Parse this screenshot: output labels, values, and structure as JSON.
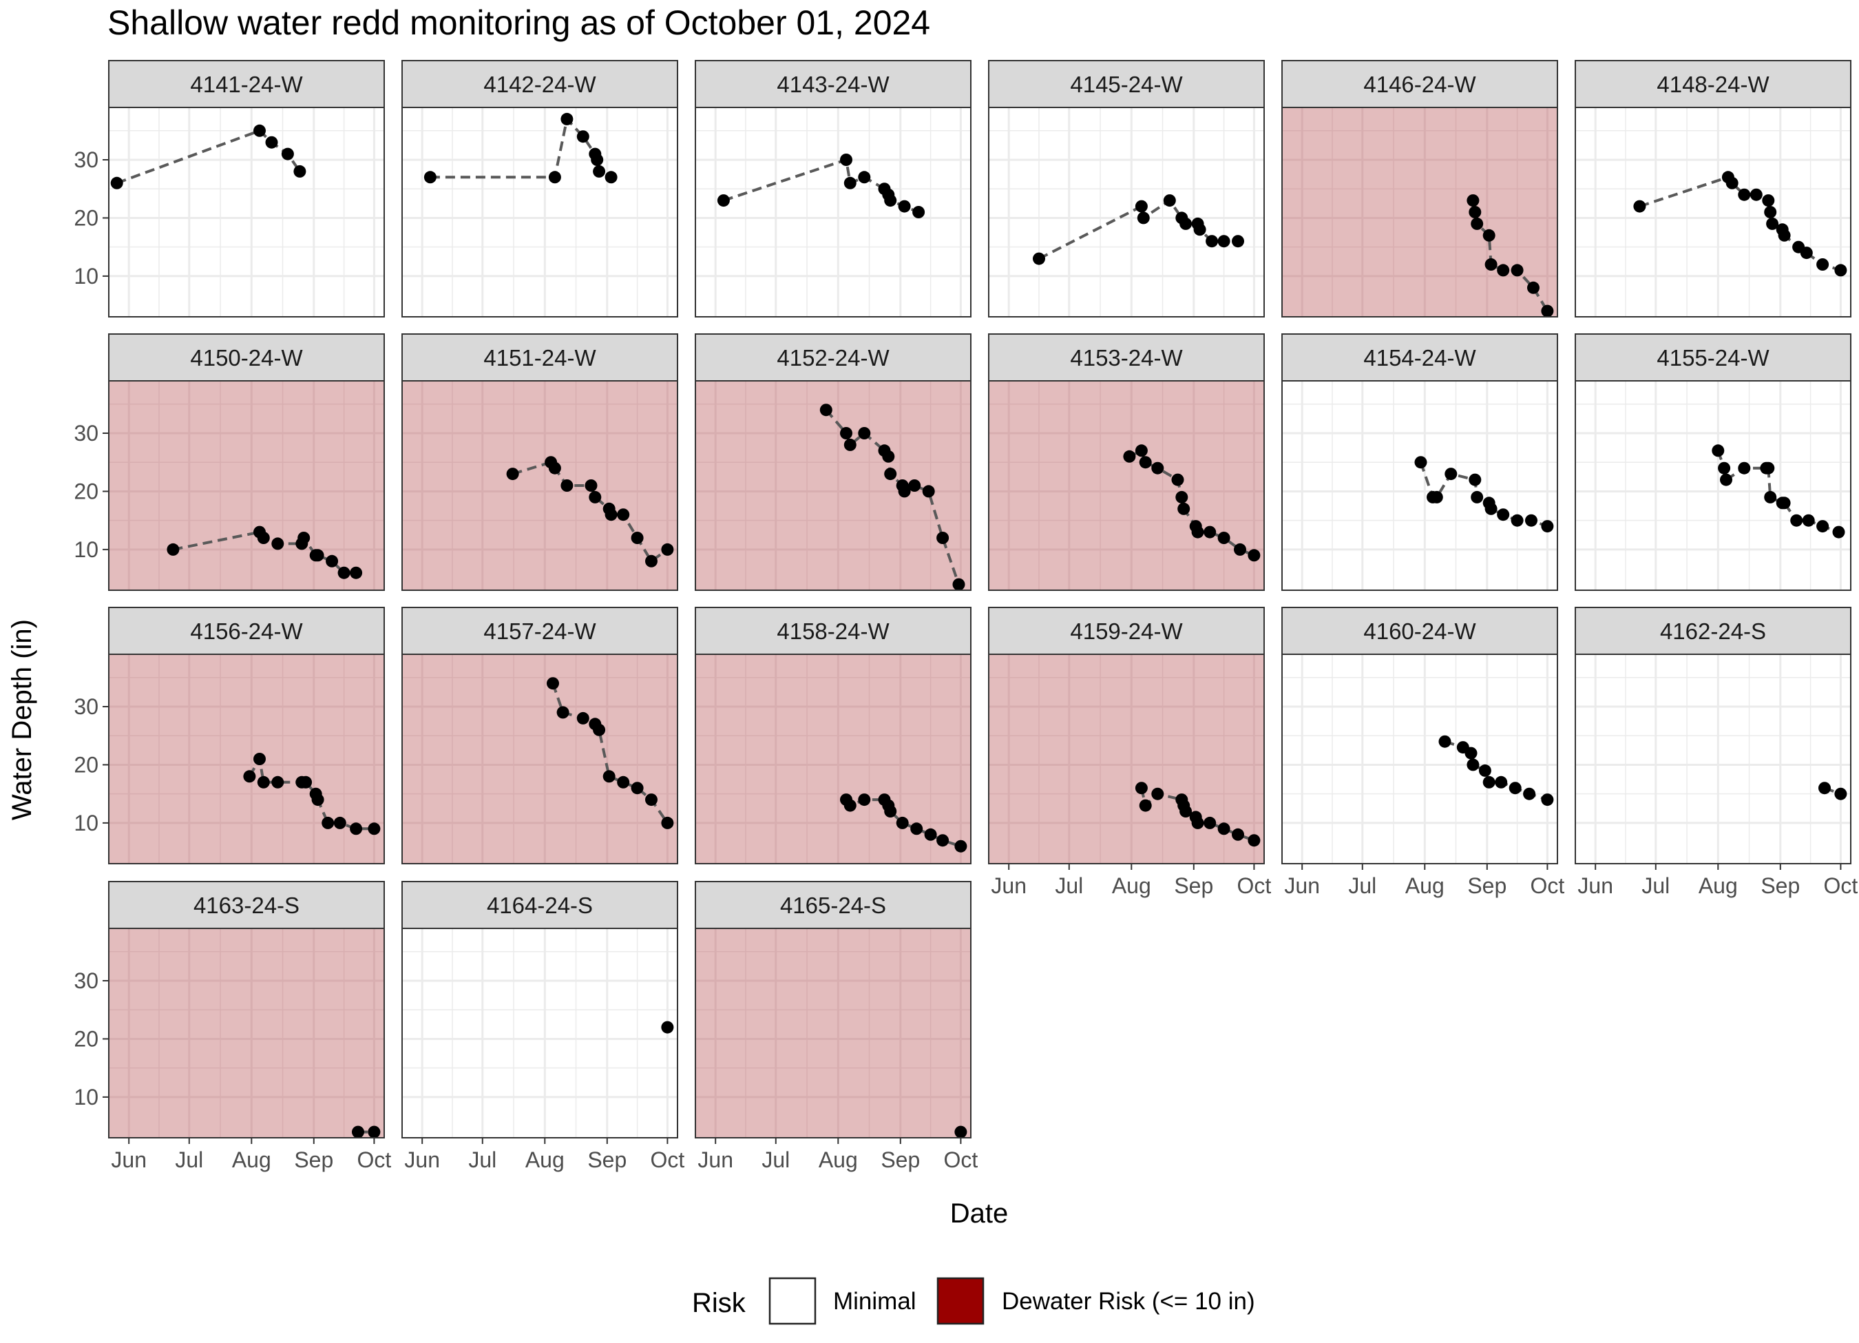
{
  "chart_data": {
    "type": "scatter",
    "title": "Shallow water redd monitoring as of October 01, 2024",
    "xlabel": "Date",
    "ylabel": "Water Depth (in)",
    "x_ticks": [
      "Jun",
      "Jul",
      "Aug",
      "Sep",
      "Oct"
    ],
    "x_tick_dates": [
      "2024-06-01",
      "2024-07-01",
      "2024-08-01",
      "2024-09-01",
      "2024-10-01"
    ],
    "xlim": [
      "2024-05-22",
      "2024-10-06"
    ],
    "y_ticks": [
      10,
      20,
      30
    ],
    "ylim": [
      3,
      39
    ],
    "grid": true,
    "line_style": "dashed",
    "legend": {
      "title": "Risk",
      "position": "bottom",
      "items": [
        {
          "label": "Minimal",
          "color": "#ffffff"
        },
        {
          "label": "Dewater Risk (<= 10 in)",
          "color": "#990000"
        }
      ]
    },
    "colors": {
      "risk_fill": "#e3bcbd",
      "risk_grid": "#d8aeb0",
      "grid": "#ebebeb",
      "strip": "#d9d9d9",
      "point": "#000000",
      "line": "#595959"
    },
    "panels": [
      {
        "label": "4141-24-W",
        "risk": false,
        "points": [
          [
            "2024-05-26",
            26
          ],
          [
            "2024-08-05",
            35
          ],
          [
            "2024-08-11",
            33
          ],
          [
            "2024-08-19",
            31
          ],
          [
            "2024-08-25",
            28
          ]
        ]
      },
      {
        "label": "4142-24-W",
        "risk": false,
        "points": [
          [
            "2024-06-05",
            27
          ],
          [
            "2024-08-06",
            27
          ],
          [
            "2024-08-12",
            37
          ],
          [
            "2024-08-20",
            34
          ],
          [
            "2024-08-26",
            31
          ],
          [
            "2024-08-27",
            30
          ],
          [
            "2024-08-28",
            28
          ],
          [
            "2024-09-03",
            27
          ]
        ]
      },
      {
        "label": "4143-24-W",
        "risk": false,
        "points": [
          [
            "2024-06-05",
            23
          ],
          [
            "2024-08-05",
            30
          ],
          [
            "2024-08-07",
            26
          ],
          [
            "2024-08-14",
            27
          ],
          [
            "2024-08-24",
            25
          ],
          [
            "2024-08-26",
            24
          ],
          [
            "2024-08-27",
            23
          ],
          [
            "2024-09-03",
            22
          ],
          [
            "2024-09-10",
            21
          ]
        ]
      },
      {
        "label": "4145-24-W",
        "risk": false,
        "points": [
          [
            "2024-06-16",
            13
          ],
          [
            "2024-08-06",
            22
          ],
          [
            "2024-08-07",
            20
          ],
          [
            "2024-08-20",
            23
          ],
          [
            "2024-08-26",
            20
          ],
          [
            "2024-08-28",
            19
          ],
          [
            "2024-09-03",
            19
          ],
          [
            "2024-09-04",
            18
          ],
          [
            "2024-09-10",
            16
          ],
          [
            "2024-09-16",
            16
          ],
          [
            "2024-09-23",
            16
          ]
        ]
      },
      {
        "label": "4146-24-W",
        "risk": true,
        "points": [
          [
            "2024-08-25",
            23
          ],
          [
            "2024-08-26",
            21
          ],
          [
            "2024-08-27",
            19
          ],
          [
            "2024-09-02",
            17
          ],
          [
            "2024-09-03",
            12
          ],
          [
            "2024-09-09",
            11
          ],
          [
            "2024-09-16",
            11
          ],
          [
            "2024-09-24",
            8
          ],
          [
            "2024-10-01",
            4
          ]
        ]
      },
      {
        "label": "4148-24-W",
        "risk": false,
        "points": [
          [
            "2024-06-23",
            22
          ],
          [
            "2024-08-06",
            27
          ],
          [
            "2024-08-08",
            26
          ],
          [
            "2024-08-14",
            24
          ],
          [
            "2024-08-20",
            24
          ],
          [
            "2024-08-26",
            23
          ],
          [
            "2024-08-27",
            21
          ],
          [
            "2024-08-28",
            19
          ],
          [
            "2024-09-02",
            18
          ],
          [
            "2024-09-03",
            17
          ],
          [
            "2024-09-10",
            15
          ],
          [
            "2024-09-14",
            14
          ],
          [
            "2024-09-22",
            12
          ],
          [
            "2024-10-01",
            11
          ]
        ]
      },
      {
        "label": "4150-24-W",
        "risk": true,
        "points": [
          [
            "2024-06-23",
            10
          ],
          [
            "2024-08-05",
            13
          ],
          [
            "2024-08-07",
            12
          ],
          [
            "2024-08-14",
            11
          ],
          [
            "2024-08-26",
            11
          ],
          [
            "2024-08-27",
            12
          ],
          [
            "2024-09-02",
            9
          ],
          [
            "2024-09-03",
            9
          ],
          [
            "2024-09-10",
            8
          ],
          [
            "2024-09-16",
            6
          ],
          [
            "2024-09-22",
            6
          ]
        ]
      },
      {
        "label": "4151-24-W",
        "risk": true,
        "points": [
          [
            "2024-07-16",
            23
          ],
          [
            "2024-08-04",
            25
          ],
          [
            "2024-08-06",
            24
          ],
          [
            "2024-08-12",
            21
          ],
          [
            "2024-08-24",
            21
          ],
          [
            "2024-08-26",
            19
          ],
          [
            "2024-09-02",
            17
          ],
          [
            "2024-09-03",
            16
          ],
          [
            "2024-09-09",
            16
          ],
          [
            "2024-09-16",
            12
          ],
          [
            "2024-09-23",
            8
          ],
          [
            "2024-10-01",
            10
          ]
        ]
      },
      {
        "label": "4152-24-W",
        "risk": true,
        "points": [
          [
            "2024-07-26",
            34
          ],
          [
            "2024-08-05",
            30
          ],
          [
            "2024-08-07",
            28
          ],
          [
            "2024-08-14",
            30
          ],
          [
            "2024-08-24",
            27
          ],
          [
            "2024-08-26",
            26
          ],
          [
            "2024-08-27",
            23
          ],
          [
            "2024-09-02",
            21
          ],
          [
            "2024-09-03",
            20
          ],
          [
            "2024-09-08",
            21
          ],
          [
            "2024-09-15",
            20
          ],
          [
            "2024-09-22",
            12
          ],
          [
            "2024-09-30",
            4
          ]
        ]
      },
      {
        "label": "4153-24-W",
        "risk": true,
        "points": [
          [
            "2024-07-31",
            26
          ],
          [
            "2024-08-06",
            27
          ],
          [
            "2024-08-08",
            25
          ],
          [
            "2024-08-14",
            24
          ],
          [
            "2024-08-24",
            22
          ],
          [
            "2024-08-26",
            19
          ],
          [
            "2024-08-27",
            17
          ],
          [
            "2024-09-02",
            14
          ],
          [
            "2024-09-03",
            13
          ],
          [
            "2024-09-09",
            13
          ],
          [
            "2024-09-16",
            12
          ],
          [
            "2024-09-24",
            10
          ],
          [
            "2024-10-01",
            9
          ]
        ]
      },
      {
        "label": "4154-24-W",
        "risk": false,
        "points": [
          [
            "2024-07-30",
            25
          ],
          [
            "2024-08-05",
            19
          ],
          [
            "2024-08-07",
            19
          ],
          [
            "2024-08-14",
            23
          ],
          [
            "2024-08-26",
            22
          ],
          [
            "2024-08-27",
            19
          ],
          [
            "2024-09-02",
            18
          ],
          [
            "2024-09-03",
            17
          ],
          [
            "2024-09-09",
            16
          ],
          [
            "2024-09-16",
            15
          ],
          [
            "2024-09-23",
            15
          ],
          [
            "2024-10-01",
            14
          ]
        ]
      },
      {
        "label": "4155-24-W",
        "risk": false,
        "points": [
          [
            "2024-08-01",
            27
          ],
          [
            "2024-08-04",
            24
          ],
          [
            "2024-08-05",
            22
          ],
          [
            "2024-08-14",
            24
          ],
          [
            "2024-08-25",
            24
          ],
          [
            "2024-08-26",
            24
          ],
          [
            "2024-08-27",
            19
          ],
          [
            "2024-09-02",
            18
          ],
          [
            "2024-09-03",
            18
          ],
          [
            "2024-09-09",
            15
          ],
          [
            "2024-09-15",
            15
          ],
          [
            "2024-09-22",
            14
          ],
          [
            "2024-09-30",
            13
          ]
        ]
      },
      {
        "label": "4156-24-W",
        "risk": true,
        "points": [
          [
            "2024-07-31",
            18
          ],
          [
            "2024-08-05",
            21
          ],
          [
            "2024-08-07",
            17
          ],
          [
            "2024-08-14",
            17
          ],
          [
            "2024-08-26",
            17
          ],
          [
            "2024-08-28",
            17
          ],
          [
            "2024-09-02",
            15
          ],
          [
            "2024-09-03",
            14
          ],
          [
            "2024-09-08",
            10
          ],
          [
            "2024-09-14",
            10
          ],
          [
            "2024-09-22",
            9
          ],
          [
            "2024-10-01",
            9
          ]
        ]
      },
      {
        "label": "4157-24-W",
        "risk": true,
        "points": [
          [
            "2024-08-05",
            34
          ],
          [
            "2024-08-10",
            29
          ],
          [
            "2024-08-20",
            28
          ],
          [
            "2024-08-26",
            27
          ],
          [
            "2024-08-28",
            26
          ],
          [
            "2024-09-02",
            18
          ],
          [
            "2024-09-09",
            17
          ],
          [
            "2024-09-16",
            16
          ],
          [
            "2024-09-23",
            14
          ],
          [
            "2024-10-01",
            10
          ]
        ]
      },
      {
        "label": "4158-24-W",
        "risk": true,
        "points": [
          [
            "2024-08-05",
            14
          ],
          [
            "2024-08-07",
            13
          ],
          [
            "2024-08-14",
            14
          ],
          [
            "2024-08-24",
            14
          ],
          [
            "2024-08-26",
            13
          ],
          [
            "2024-08-27",
            12
          ],
          [
            "2024-09-02",
            10
          ],
          [
            "2024-09-09",
            9
          ],
          [
            "2024-09-16",
            8
          ],
          [
            "2024-09-22",
            7
          ],
          [
            "2024-10-01",
            6
          ]
        ]
      },
      {
        "label": "4159-24-W",
        "risk": true,
        "points": [
          [
            "2024-08-06",
            16
          ],
          [
            "2024-08-08",
            13
          ],
          [
            "2024-08-14",
            15
          ],
          [
            "2024-08-26",
            14
          ],
          [
            "2024-08-27",
            13
          ],
          [
            "2024-08-28",
            12
          ],
          [
            "2024-09-02",
            11
          ],
          [
            "2024-09-03",
            10
          ],
          [
            "2024-09-09",
            10
          ],
          [
            "2024-09-16",
            9
          ],
          [
            "2024-09-23",
            8
          ],
          [
            "2024-10-01",
            7
          ]
        ]
      },
      {
        "label": "4160-24-W",
        "risk": false,
        "points": [
          [
            "2024-08-11",
            24
          ],
          [
            "2024-08-20",
            23
          ],
          [
            "2024-08-24",
            22
          ],
          [
            "2024-08-25",
            20
          ],
          [
            "2024-08-31",
            19
          ],
          [
            "2024-09-02",
            17
          ],
          [
            "2024-09-08",
            17
          ],
          [
            "2024-09-15",
            16
          ],
          [
            "2024-09-22",
            15
          ],
          [
            "2024-10-01",
            14
          ]
        ]
      },
      {
        "label": "4162-24-S",
        "risk": false,
        "points": [
          [
            "2024-09-23",
            16
          ],
          [
            "2024-10-01",
            15
          ]
        ]
      },
      {
        "label": "4163-24-S",
        "risk": true,
        "points": [
          [
            "2024-09-23",
            4
          ],
          [
            "2024-10-01",
            4
          ]
        ]
      },
      {
        "label": "4164-24-S",
        "risk": false,
        "points": [
          [
            "2024-10-01",
            22
          ]
        ]
      },
      {
        "label": "4165-24-S",
        "risk": true,
        "points": [
          [
            "2024-10-01",
            4
          ]
        ]
      }
    ]
  }
}
